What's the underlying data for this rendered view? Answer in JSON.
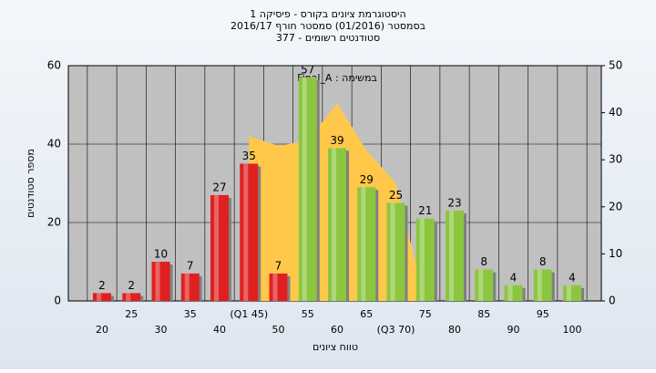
{
  "chart_data": {
    "type": "bar",
    "title": [
      "היסטוגרמת ציונים בקורס - פיסיקה 1",
      "בסמסטר  (01/2016)  סמסטר חורף 2016/17",
      "סטודנטים רשומים - 377"
    ],
    "y_label": "מספר סטודנטים",
    "x_label": "טווח ציונים",
    "categories": [
      "20",
      "25",
      "30",
      "35",
      "40",
      "(Q1 45)",
      "50",
      "55",
      "60",
      "65",
      "(Q3 70)",
      "75",
      "80",
      "85",
      "90",
      "95",
      "100"
    ],
    "values": [
      2,
      2,
      10,
      7,
      27,
      35,
      7,
      57,
      39,
      29,
      25,
      21,
      23,
      8,
      4,
      8,
      4
    ],
    "colors": [
      "#e02020",
      "#e02020",
      "#e02020",
      "#e02020",
      "#e02020",
      "#e02020",
      "#e02020",
      "#8cc63f",
      "#8cc63f",
      "#8cc63f",
      "#8cc63f",
      "#8cc63f",
      "#8cc63f",
      "#8cc63f",
      "#8cc63f",
      "#8cc63f",
      "#8cc63f"
    ],
    "area": {
      "name": "Final_A : במשימה",
      "color": "#ffc84a",
      "axis": "y2",
      "values": [
        null,
        null,
        null,
        null,
        null,
        35,
        33,
        34,
        42,
        32,
        25,
        0,
        null,
        null,
        null,
        null,
        null
      ]
    },
    "ylim": [
      0,
      60
    ],
    "yticks": [
      0,
      20,
      40,
      60
    ],
    "y2lim": [
      0,
      50
    ],
    "y2ticks": [
      0,
      10,
      20,
      30,
      40,
      50
    ],
    "grid": true
  }
}
